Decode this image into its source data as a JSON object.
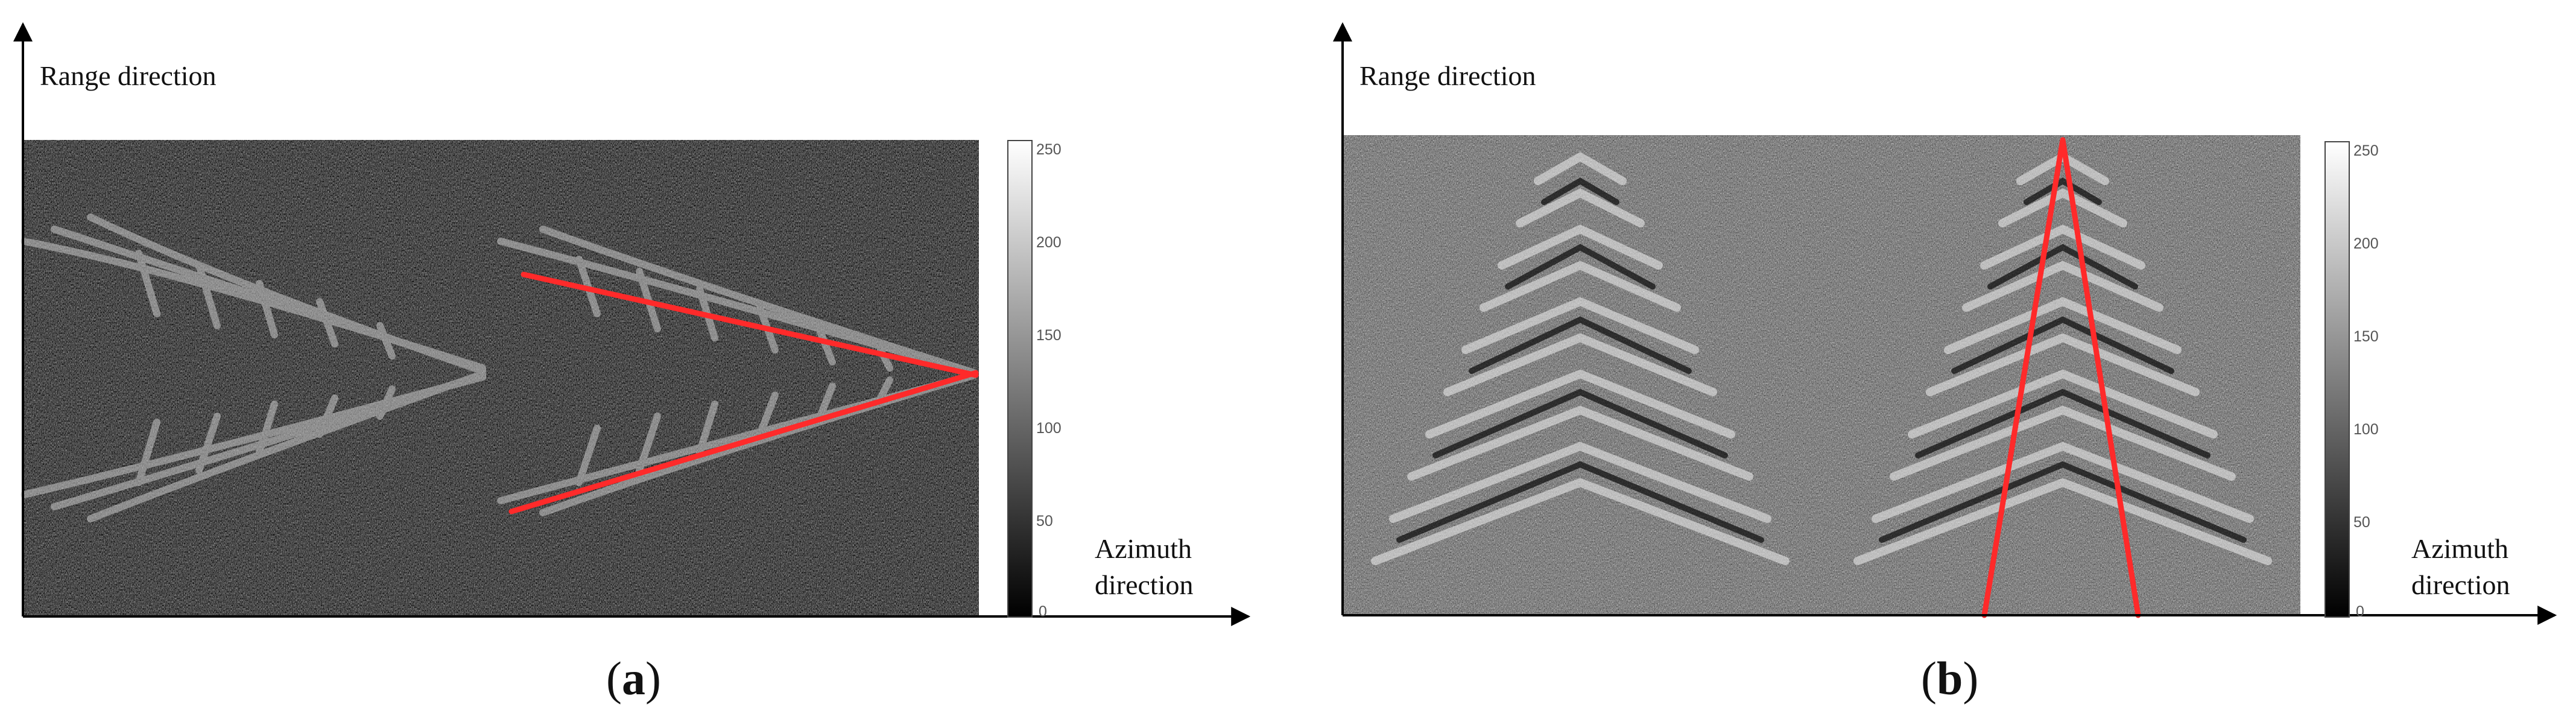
{
  "panels": [
    {
      "id": "a",
      "range_label": "Range  direction",
      "azimuth_label_1": "Azimuth",
      "azimuth_label_2": "direction",
      "caption_open": "(",
      "caption_letter": "a",
      "caption_close": ")",
      "colorbar": {
        "max": 255,
        "ticks": [
          "250",
          "200",
          "150",
          "100",
          "50",
          "0"
        ]
      },
      "annotation_color": "#ff2a2a"
    },
    {
      "id": "b",
      "range_label": "Range  direction",
      "azimuth_label_1": "Azimuth",
      "azimuth_label_2": "direction",
      "caption_open": "(",
      "caption_letter": "b",
      "caption_close": ")",
      "colorbar": {
        "max": 255,
        "ticks": [
          "250",
          "200",
          "150",
          "100",
          "50",
          "0"
        ]
      },
      "annotation_color": "#ff2a2a"
    }
  ]
}
